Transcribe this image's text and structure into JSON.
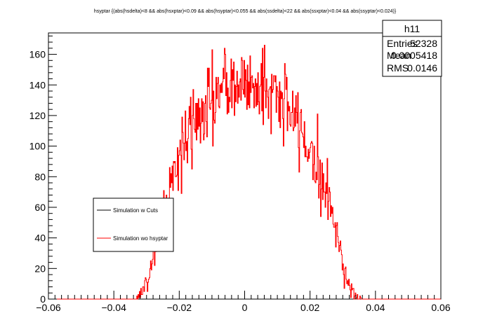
{
  "chart_data": {
    "type": "histogram",
    "title": "hsyptar {(abs(hsdelta)<8 && abs(hsxptar)<0.09 && abs(hsyptar)<0.055 && abs(ssdelta)<22 && abs(ssxptar)<0.04 && abs(ssyptar)<0.024)}",
    "xlabel": "",
    "ylabel": "",
    "xlim": [
      -0.06,
      0.06
    ],
    "ylim": [
      0,
      174
    ],
    "x_ticks": [
      -0.06,
      -0.04,
      -0.02,
      0,
      0.02,
      0.04,
      0.06
    ],
    "x_tick_labels": [
      "−0.06",
      "−0.04",
      "−0.02",
      "0",
      "0.02",
      "0.04",
      "0.06"
    ],
    "y_ticks": [
      0,
      20,
      40,
      60,
      80,
      100,
      120,
      140,
      160
    ],
    "y_tick_labels": [
      "0",
      "20",
      "40",
      "60",
      "80",
      "100",
      "120",
      "140",
      "160"
    ],
    "grid": false,
    "bins": 600,
    "envelope": {
      "x": [
        -0.06,
        -0.034,
        -0.032,
        -0.03,
        -0.028,
        -0.026,
        -0.024,
        -0.022,
        -0.02,
        -0.018,
        -0.016,
        -0.014,
        -0.012,
        -0.01,
        -0.008,
        -0.006,
        -0.004,
        -0.002,
        0.0,
        0.002,
        0.004,
        0.006,
        0.008,
        0.01,
        0.012,
        0.014,
        0.016,
        0.018,
        0.02,
        0.022,
        0.024,
        0.026,
        0.028,
        0.03,
        0.032,
        0.034,
        0.036,
        0.06
      ],
      "y": [
        0,
        0,
        3,
        10,
        25,
        45,
        65,
        80,
        92,
        103,
        112,
        119,
        125,
        130,
        134,
        137,
        139,
        140,
        141,
        141,
        140,
        139,
        136,
        132,
        128,
        122,
        115,
        107,
        98,
        88,
        77,
        62,
        45,
        25,
        8,
        2,
        0,
        0
      ]
    },
    "series": [
      {
        "name": "Simulation w Cuts",
        "color": "#000000",
        "values": []
      },
      {
        "name": "Simulation wo hsyptar",
        "color": "#ff0000",
        "values": "sampled histogram following envelope, peak about 165"
      }
    ],
    "stats_box": {
      "name": "h11",
      "rows": [
        {
          "label": "Entries",
          "value": "52328"
        },
        {
          "label": "Mean",
          "value": "0.0005418"
        },
        {
          "label": "RMS",
          "value": "0.0146"
        }
      ]
    },
    "legend_position": "left-middle"
  }
}
